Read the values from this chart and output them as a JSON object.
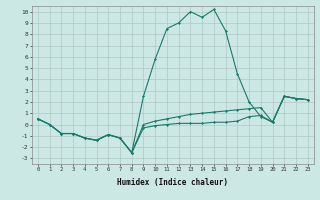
{
  "xlabel": "Humidex (Indice chaleur)",
  "x": [
    0,
    1,
    2,
    3,
    4,
    5,
    6,
    7,
    8,
    9,
    10,
    11,
    12,
    13,
    14,
    15,
    16,
    17,
    18,
    19,
    20,
    21,
    22,
    23
  ],
  "line1": [
    0.5,
    0.0,
    -0.8,
    -0.8,
    -1.2,
    -1.4,
    -0.9,
    -1.2,
    -2.5,
    2.5,
    5.8,
    8.5,
    9.0,
    10.0,
    9.5,
    10.2,
    8.3,
    4.5,
    2.0,
    0.7,
    0.2,
    2.5,
    2.3,
    2.2
  ],
  "line2": [
    0.5,
    0.0,
    -0.8,
    -0.8,
    -1.2,
    -1.4,
    -0.9,
    -1.2,
    -2.5,
    0.0,
    0.3,
    0.5,
    0.7,
    0.9,
    1.0,
    1.1,
    1.2,
    1.3,
    1.4,
    1.5,
    0.2,
    2.5,
    2.3,
    2.2
  ],
  "line3": [
    0.5,
    0.0,
    -0.8,
    -0.8,
    -1.2,
    -1.4,
    -0.9,
    -1.2,
    -2.5,
    -0.3,
    -0.1,
    0.0,
    0.1,
    0.1,
    0.1,
    0.2,
    0.2,
    0.3,
    0.7,
    0.8,
    0.2,
    2.5,
    2.3,
    2.2
  ],
  "color": "#1a7a6a",
  "bg_color": "#cce8e4",
  "grid_color": "#b0c8c4",
  "ylim": [
    -3.5,
    10.5
  ],
  "yticks": [
    -3,
    -2,
    -1,
    0,
    1,
    2,
    3,
    4,
    5,
    6,
    7,
    8,
    9,
    10
  ],
  "xticks": [
    0,
    1,
    2,
    3,
    4,
    5,
    6,
    7,
    8,
    9,
    10,
    11,
    12,
    13,
    14,
    15,
    16,
    17,
    18,
    19,
    20,
    21,
    22,
    23
  ]
}
